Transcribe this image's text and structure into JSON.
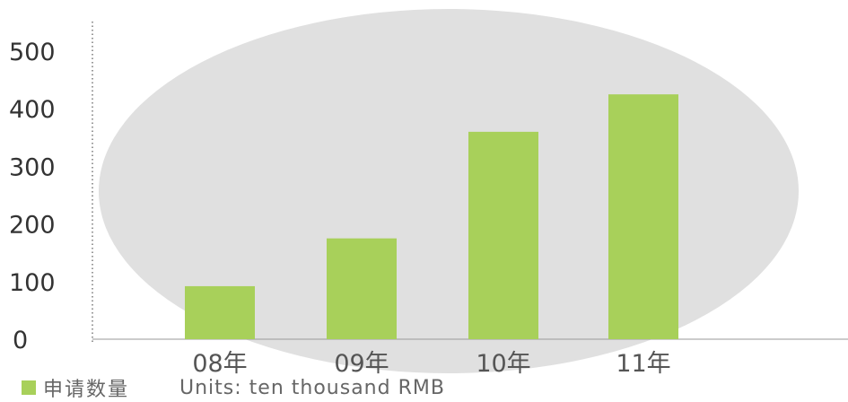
{
  "colors": {
    "bar": "#a8d05a",
    "backdrop_ellipse": "#e0e0e0",
    "axis": "#9a9a9a",
    "tick_text": "#333333",
    "category_text": "#555555"
  },
  "legend": {
    "series_label": "申请数量",
    "units_label": "Units: ten thousand RMB"
  },
  "chart_data": {
    "type": "bar",
    "categories": [
      "08年",
      "09年",
      "10年",
      "11年"
    ],
    "series": [
      {
        "name": "申请数量",
        "values": [
          92,
          175,
          360,
          425
        ]
      }
    ],
    "yticks": [
      0,
      100,
      200,
      300,
      400,
      500
    ],
    "ylim": [
      0,
      500
    ],
    "units": "Units: ten thousand RMB",
    "grid": false,
    "legend_position": "bottom-left"
  }
}
